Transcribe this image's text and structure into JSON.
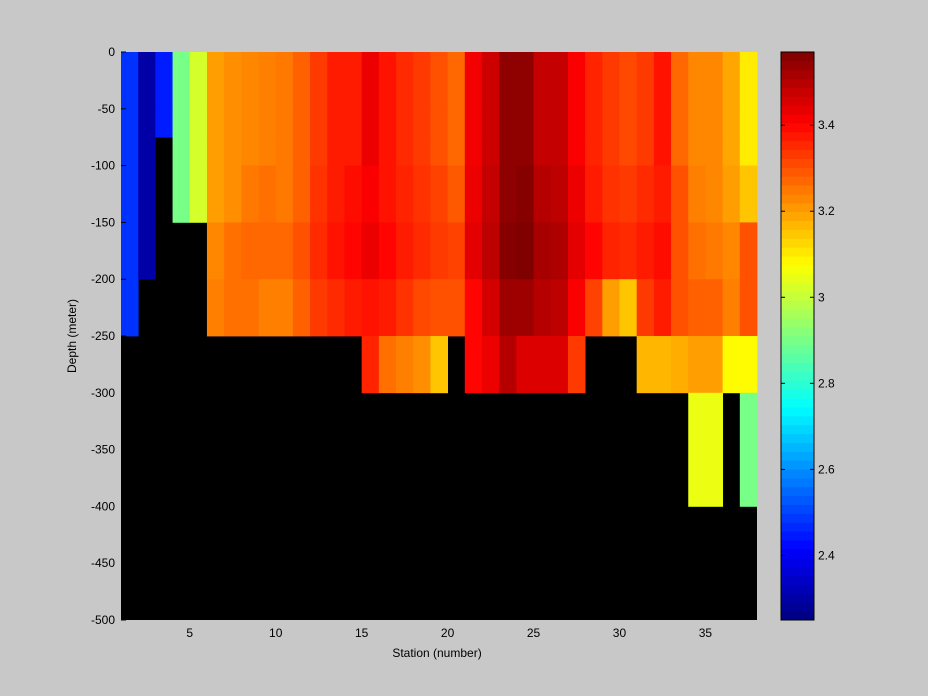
{
  "chart_data": {
    "type": "heatmap",
    "title": "",
    "xlabel": "Station (number)",
    "ylabel": "Depth (meter)",
    "xlim": [
      1,
      38
    ],
    "ylim": [
      -500,
      0
    ],
    "x_ticks": [
      5,
      10,
      15,
      20,
      25,
      30,
      35
    ],
    "y_ticks": [
      0,
      -50,
      -100,
      -150,
      -200,
      -250,
      -300,
      -350,
      -400,
      -450,
      -500
    ],
    "y_bin_edges": [
      0,
      -5,
      -50,
      -75,
      -100,
      -150,
      -200,
      -250,
      -300,
      -400
    ],
    "colormap": "jet",
    "no_data_color": "#000000",
    "background_color": "#c8c8c8",
    "colorbar": {
      "range": [
        2.25,
        3.57
      ],
      "ticks": [
        2.4,
        2.6,
        2.8,
        3,
        3.2,
        3.4
      ],
      "tick_labels": [
        "2.4",
        "2.6",
        "2.8",
        "3",
        "3.2",
        "3.4"
      ]
    },
    "stations": [
      1,
      2,
      3,
      4,
      5,
      6,
      7,
      8,
      9,
      10,
      11,
      12,
      13,
      14,
      15,
      16,
      17,
      18,
      19,
      20,
      21,
      22,
      23,
      24,
      25,
      26,
      27,
      28,
      29,
      30,
      31,
      32,
      33,
      34,
      35,
      36,
      37
    ],
    "values": [
      [
        2.48,
        2.3,
        2.45,
        2.9,
        3.02,
        3.2,
        3.22,
        3.23,
        3.24,
        3.25,
        3.28,
        3.33,
        3.37,
        3.37,
        3.43,
        3.38,
        3.35,
        3.33,
        3.3,
        3.27,
        3.42,
        3.47,
        3.55,
        3.55,
        3.48,
        3.48,
        3.41,
        3.36,
        3.33,
        3.31,
        3.33,
        3.38,
        3.27,
        3.23,
        3.23,
        3.19,
        3.1
      ],
      [
        2.48,
        2.3,
        2.45,
        2.9,
        3.02,
        3.2,
        3.22,
        3.23,
        3.24,
        3.25,
        3.28,
        3.33,
        3.37,
        3.37,
        3.43,
        3.38,
        3.35,
        3.33,
        3.3,
        3.27,
        3.42,
        3.47,
        3.55,
        3.55,
        3.48,
        3.48,
        3.41,
        3.36,
        3.33,
        3.31,
        3.33,
        3.38,
        3.27,
        3.23,
        3.23,
        3.19,
        3.1
      ],
      [
        2.48,
        2.3,
        2.45,
        2.9,
        3.02,
        3.2,
        3.22,
        3.23,
        3.24,
        3.25,
        3.28,
        3.33,
        3.37,
        3.37,
        3.43,
        3.38,
        3.35,
        3.33,
        3.3,
        3.27,
        3.42,
        3.47,
        3.55,
        3.55,
        3.48,
        3.48,
        3.41,
        3.36,
        3.33,
        3.31,
        3.33,
        3.38,
        3.27,
        3.23,
        3.23,
        3.19,
        3.1
      ],
      [
        2.48,
        2.3,
        null,
        2.9,
        3.02,
        3.2,
        3.22,
        3.23,
        3.24,
        3.25,
        3.28,
        3.33,
        3.37,
        3.37,
        3.43,
        3.38,
        3.35,
        3.33,
        3.3,
        3.27,
        3.42,
        3.47,
        3.55,
        3.55,
        3.48,
        3.48,
        3.41,
        3.36,
        3.33,
        3.31,
        3.33,
        3.38,
        3.27,
        3.23,
        3.23,
        3.19,
        3.1
      ],
      [
        2.48,
        2.3,
        null,
        2.9,
        3.02,
        3.2,
        3.22,
        3.25,
        3.26,
        3.25,
        3.28,
        3.34,
        3.37,
        3.39,
        3.41,
        3.38,
        3.36,
        3.34,
        3.32,
        3.29,
        3.43,
        3.48,
        3.55,
        3.56,
        3.5,
        3.49,
        3.43,
        3.37,
        3.34,
        3.33,
        3.35,
        3.37,
        3.3,
        3.24,
        3.23,
        3.2,
        3.15
      ],
      [
        2.48,
        2.3,
        null,
        null,
        null,
        3.23,
        3.26,
        3.27,
        3.27,
        3.27,
        3.3,
        3.35,
        3.38,
        3.4,
        3.43,
        3.4,
        3.37,
        3.35,
        3.33,
        3.32,
        3.44,
        3.49,
        3.56,
        3.57,
        3.52,
        3.51,
        3.44,
        3.4,
        3.36,
        3.35,
        3.37,
        3.39,
        3.3,
        3.26,
        3.25,
        3.23,
        3.3
      ],
      [
        2.48,
        null,
        null,
        null,
        null,
        3.24,
        3.26,
        3.26,
        3.24,
        3.24,
        3.28,
        3.33,
        3.35,
        3.37,
        3.38,
        3.37,
        3.34,
        3.31,
        3.3,
        3.3,
        3.4,
        3.46,
        3.53,
        3.53,
        3.5,
        3.49,
        3.41,
        3.32,
        3.2,
        3.15,
        3.33,
        3.37,
        3.3,
        3.28,
        3.28,
        3.24,
        3.3
      ],
      [
        null,
        null,
        null,
        null,
        null,
        null,
        null,
        null,
        null,
        null,
        null,
        null,
        null,
        null,
        3.36,
        3.26,
        3.24,
        3.22,
        3.15,
        null,
        3.4,
        3.43,
        3.5,
        3.45,
        3.45,
        3.45,
        3.33,
        null,
        null,
        null,
        3.17,
        3.17,
        3.18,
        3.2,
        3.2,
        3.08,
        3.08
      ],
      [
        null,
        null,
        null,
        null,
        null,
        null,
        null,
        null,
        null,
        null,
        null,
        null,
        null,
        null,
        null,
        null,
        null,
        null,
        null,
        null,
        null,
        null,
        null,
        null,
        null,
        null,
        null,
        null,
        null,
        null,
        null,
        null,
        null,
        3.05,
        3.05,
        null,
        2.9
      ]
    ]
  }
}
